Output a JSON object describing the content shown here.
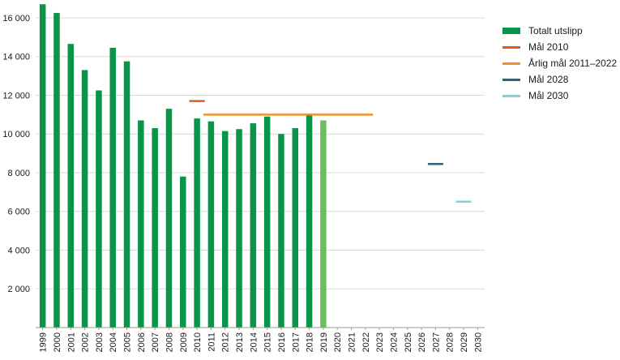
{
  "chart_data": {
    "type": "bar",
    "categories": [
      "1999",
      "2000",
      "2001",
      "2002",
      "2003",
      "2004",
      "2005",
      "2006",
      "2007",
      "2008",
      "2009",
      "2010",
      "2011",
      "2012",
      "2013",
      "2014",
      "2015",
      "2016",
      "2017",
      "2018",
      "2019",
      "2020",
      "2021",
      "2022",
      "2023",
      "2024",
      "2025",
      "2026",
      "2027",
      "2028",
      "2029",
      "2030"
    ],
    "ylim": [
      0,
      16500
    ],
    "yticks": [
      2000,
      4000,
      6000,
      8000,
      10000,
      12000,
      14000,
      16000
    ],
    "ytick_labels": [
      "2 000",
      "4 000",
      "6 000",
      "8 000",
      "10 000",
      "12 000",
      "14 000",
      "16 000"
    ],
    "grid": true,
    "legend_position": "right",
    "series": [
      {
        "name": "Totalt utslipp",
        "kind": "bar",
        "color": "#0a9447",
        "highlight_color": "#6cbf5f",
        "highlight_index": 20,
        "values": [
          16700,
          16250,
          14650,
          13300,
          12250,
          14450,
          13750,
          10700,
          10300,
          11300,
          7800,
          10800,
          10650,
          10150,
          10250,
          10550,
          10900,
          10000,
          10300,
          11000,
          10700,
          null,
          null,
          null,
          null,
          null,
          null,
          null,
          null,
          null,
          null,
          null
        ]
      },
      {
        "name": "Mål 2010",
        "kind": "target",
        "color": "#e05a1b",
        "from": "2010",
        "to": "2010",
        "value": 11700
      },
      {
        "name": "Årlig mål 2011–2022",
        "kind": "target",
        "color": "#f0902d",
        "from": "2011",
        "to": "2022",
        "value": 11000
      },
      {
        "name": "Mål 2028",
        "kind": "target",
        "color": "#1a6b8a",
        "from": "2027",
        "to": "2027",
        "value": 8450
      },
      {
        "name": "Mål 2030",
        "kind": "target",
        "color": "#7fd0e2",
        "from": "2029",
        "to": "2029",
        "value": 6500
      }
    ]
  }
}
